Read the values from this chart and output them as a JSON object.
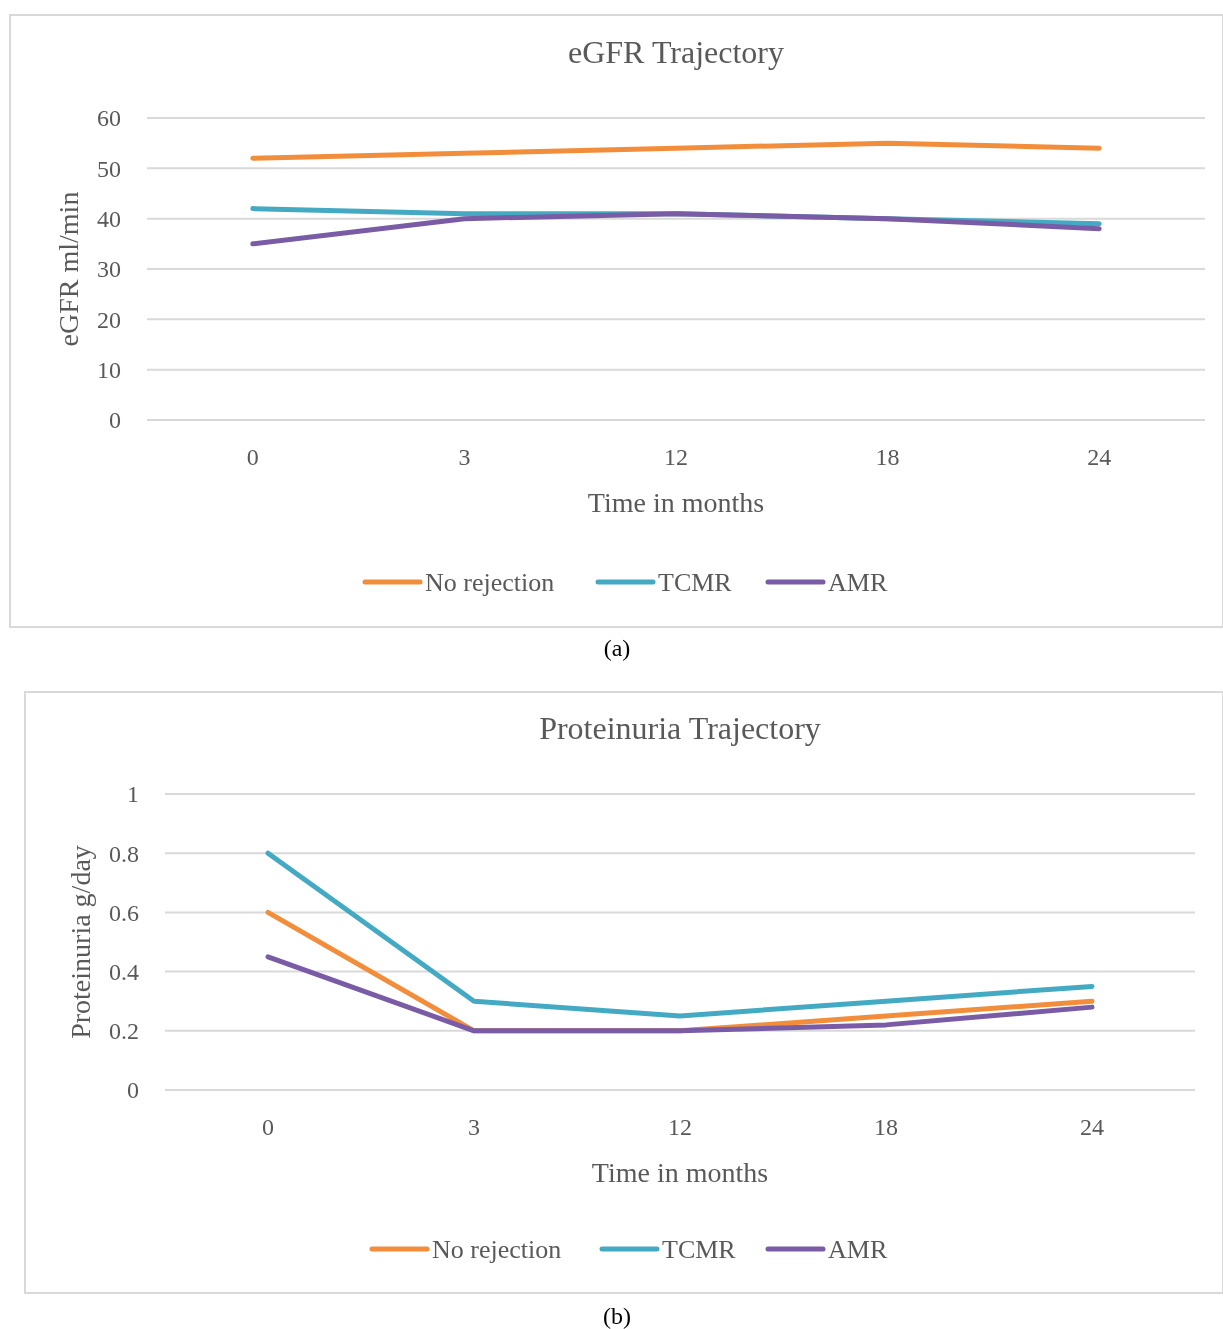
{
  "chart_data": [
    {
      "type": "line",
      "title": "eGFR Trajectory",
      "xlabel": "Time in months",
      "ylabel": "eGFR ml/min",
      "categories": [
        "0",
        "3",
        "12",
        "18",
        "24"
      ],
      "ylim": [
        0,
        60
      ],
      "yticks": [
        0,
        10,
        20,
        30,
        40,
        50,
        60
      ],
      "grid": "y",
      "legend": "bottom",
      "marker": "none",
      "line_style": "solid",
      "annotations": [
        "(a)"
      ],
      "series": [
        {
          "name": "No rejection",
          "color": "#f28e3b",
          "values": [
            52,
            53,
            54,
            55,
            54
          ]
        },
        {
          "name": "TCMR",
          "color": "#44aac4",
          "values": [
            42,
            41,
            41,
            40,
            39
          ]
        },
        {
          "name": "AMR",
          "color": "#7a5ba6",
          "values": [
            35,
            40,
            41,
            40,
            38
          ]
        }
      ]
    },
    {
      "type": "line",
      "title": "Proteinuria Trajectory",
      "xlabel": "Time in months",
      "ylabel": "Proteinuria g/day",
      "categories": [
        "0",
        "3",
        "12",
        "18",
        "24"
      ],
      "ylim": [
        0,
        1
      ],
      "yticks": [
        0,
        0.2,
        0.4,
        0.6,
        0.8,
        1
      ],
      "grid": "y",
      "legend": "bottom",
      "marker": "none",
      "line_style": "solid",
      "annotations": [
        "(b)"
      ],
      "series": [
        {
          "name": "No rejection",
          "color": "#f28e3b",
          "values": [
            0.6,
            0.2,
            0.2,
            0.25,
            0.3
          ]
        },
        {
          "name": "TCMR",
          "color": "#44aac4",
          "values": [
            0.8,
            0.3,
            0.25,
            0.3,
            0.35
          ]
        },
        {
          "name": "AMR",
          "color": "#7a5ba6",
          "values": [
            0.45,
            0.2,
            0.2,
            0.22,
            0.28
          ]
        }
      ]
    }
  ]
}
